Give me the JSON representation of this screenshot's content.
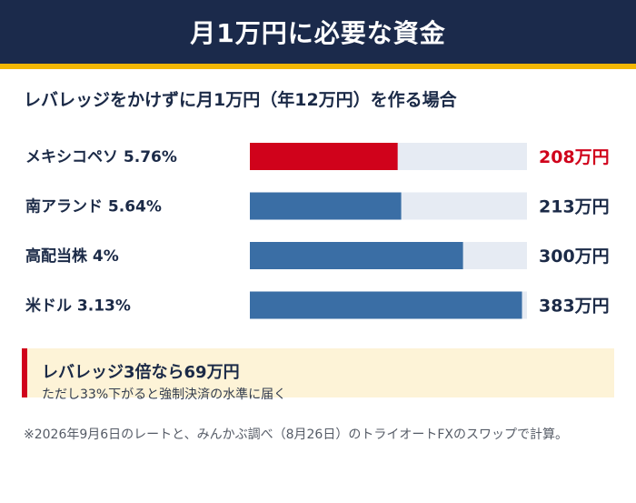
{
  "header": {
    "title": "月1万円に必要な資金"
  },
  "chart_data": {
    "type": "bar",
    "orientation": "horizontal",
    "title": "レバレッジをかけずに月1万円（年12万円）を作る場合",
    "categories": [
      "メキシコペソ 5.76%",
      "南アランド 5.64%",
      "高配当株 4%",
      "米ドル 3.13%"
    ],
    "values": [
      208,
      213,
      300,
      383
    ],
    "value_labels": [
      "208万円",
      "213万円",
      "300万円",
      "383万円"
    ],
    "unit": "万円",
    "xlim": [
      0,
      390
    ],
    "highlight_index": 0,
    "colors": {
      "bar": "#3a6ea5",
      "highlight": "#d0021b",
      "track": "#e6ebf3",
      "label": "#1b2a47"
    }
  },
  "callout": {
    "title": "レバレッジ3倍なら69万円",
    "subtitle": "ただし33%下がると強制決済の水準に届く"
  },
  "note": "※2026年9月6日のレートと、みんかぶ調べ（8月26日）のトライオートFXのスワップで計算。"
}
